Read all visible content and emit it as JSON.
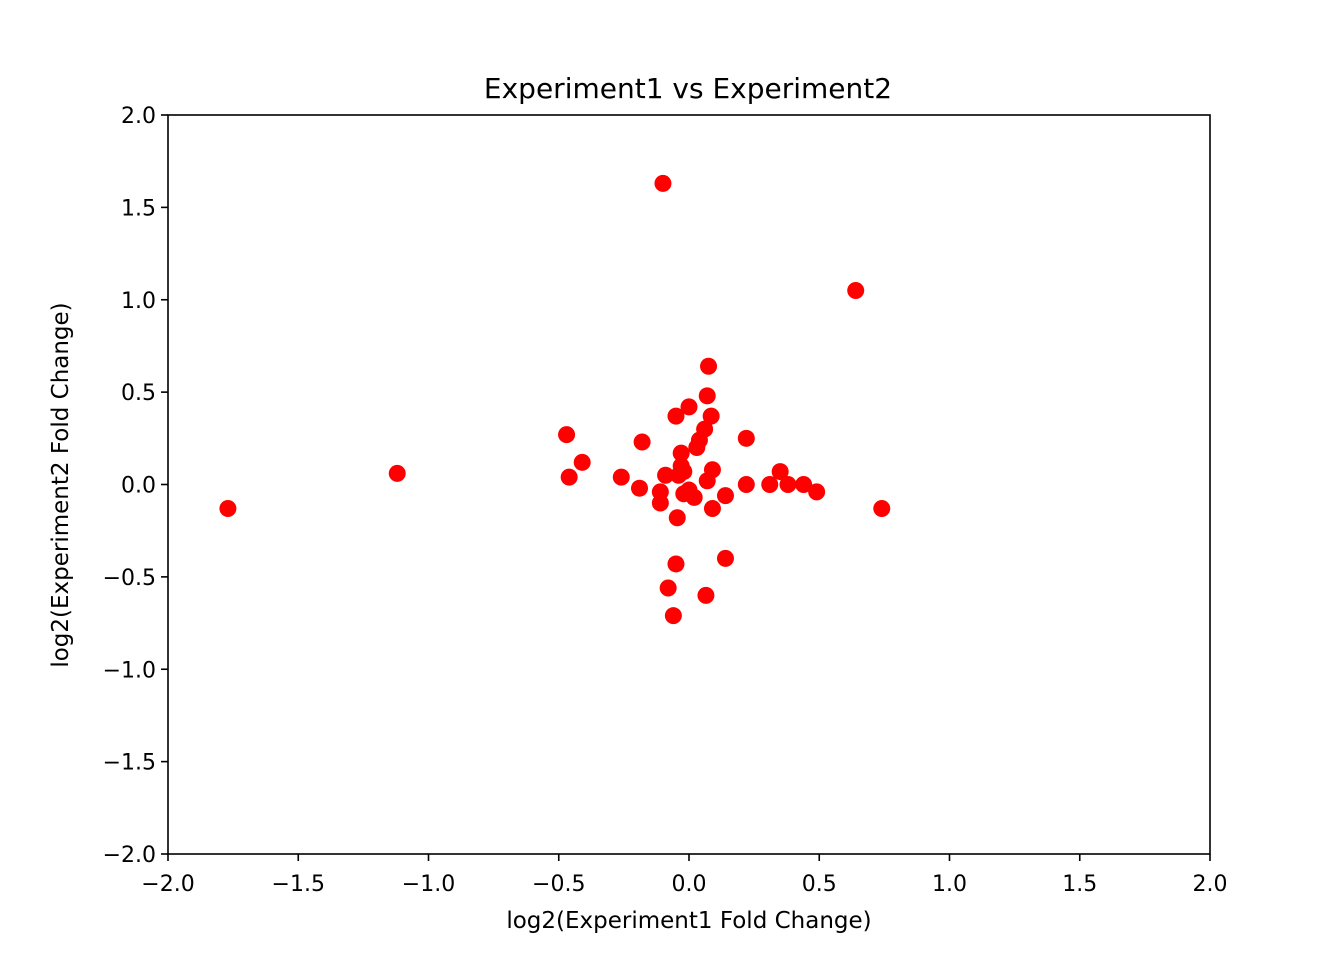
{
  "chart_data": {
    "type": "scatter",
    "title": "Experiment1 vs Experiment2",
    "xlabel": "log2(Experiment1 Fold Change)",
    "ylabel": "log2(Experiment2 Fold Change)",
    "xlim": [
      -2.0,
      2.0
    ],
    "ylim": [
      -2.0,
      2.0
    ],
    "xticks": [
      "−2.0",
      "−1.5",
      "−1.0",
      "−0.5",
      "0.0",
      "0.5",
      "1.0",
      "1.5",
      "2.0"
    ],
    "yticks": [
      "−2.0",
      "−1.5",
      "−1.0",
      "−0.5",
      "0.0",
      "0.5",
      "1.0",
      "1.5",
      "2.0"
    ],
    "xtick_values": [
      -2.0,
      -1.5,
      -1.0,
      -0.5,
      0.0,
      0.5,
      1.0,
      1.5,
      2.0
    ],
    "ytick_values": [
      -2.0,
      -1.5,
      -1.0,
      -0.5,
      0.0,
      0.5,
      1.0,
      1.5,
      2.0
    ],
    "grid": false,
    "marker_color": "#ff0000",
    "series": [
      {
        "points": [
          {
            "x": -1.77,
            "y": -0.13
          },
          {
            "x": -1.12,
            "y": 0.06
          },
          {
            "x": -0.47,
            "y": 0.27
          },
          {
            "x": -0.46,
            "y": 0.04
          },
          {
            "x": -0.41,
            "y": 0.12
          },
          {
            "x": -0.26,
            "y": 0.04
          },
          {
            "x": -0.19,
            "y": -0.02
          },
          {
            "x": -0.18,
            "y": 0.23
          },
          {
            "x": -0.11,
            "y": -0.04
          },
          {
            "x": -0.11,
            "y": -0.1
          },
          {
            "x": -0.1,
            "y": 1.63
          },
          {
            "x": -0.09,
            "y": 0.05
          },
          {
            "x": -0.08,
            "y": -0.56
          },
          {
            "x": -0.06,
            "y": -0.71
          },
          {
            "x": -0.05,
            "y": 0.37
          },
          {
            "x": -0.05,
            "y": -0.43
          },
          {
            "x": -0.045,
            "y": -0.18
          },
          {
            "x": -0.04,
            "y": 0.05
          },
          {
            "x": -0.03,
            "y": 0.1
          },
          {
            "x": -0.03,
            "y": 0.17
          },
          {
            "x": -0.02,
            "y": 0.07
          },
          {
            "x": -0.02,
            "y": -0.05
          },
          {
            "x": 0.0,
            "y": 0.42
          },
          {
            "x": 0.0,
            "y": -0.03
          },
          {
            "x": 0.02,
            "y": -0.07
          },
          {
            "x": 0.03,
            "y": 0.2
          },
          {
            "x": 0.04,
            "y": 0.24
          },
          {
            "x": 0.06,
            "y": 0.3
          },
          {
            "x": 0.065,
            "y": -0.6
          },
          {
            "x": 0.07,
            "y": 0.48
          },
          {
            "x": 0.07,
            "y": 0.02
          },
          {
            "x": 0.075,
            "y": 0.64
          },
          {
            "x": 0.085,
            "y": 0.37
          },
          {
            "x": 0.09,
            "y": 0.08
          },
          {
            "x": 0.09,
            "y": -0.13
          },
          {
            "x": 0.14,
            "y": -0.06
          },
          {
            "x": 0.14,
            "y": -0.4
          },
          {
            "x": 0.22,
            "y": 0.25
          },
          {
            "x": 0.22,
            "y": 0.0
          },
          {
            "x": 0.31,
            "y": 0.0
          },
          {
            "x": 0.35,
            "y": 0.07
          },
          {
            "x": 0.38,
            "y": 0.0
          },
          {
            "x": 0.44,
            "y": 0.0
          },
          {
            "x": 0.49,
            "y": -0.04
          },
          {
            "x": 0.64,
            "y": 1.05
          },
          {
            "x": 0.74,
            "y": -0.13
          }
        ]
      }
    ]
  }
}
